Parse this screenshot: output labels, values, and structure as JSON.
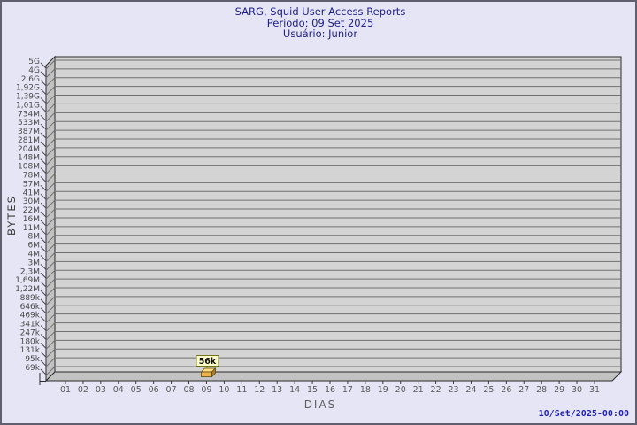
{
  "header": {
    "title": "SARG, Squid User Access Reports",
    "period": "Período: 09 Set 2025",
    "user": "Usuário: Junior"
  },
  "footer": {
    "timestamp": "10/Set/2025-00:00"
  },
  "chart_data": {
    "type": "bar",
    "title": "SARG, Squid User Access Reports",
    "subtitle": "Período: 09 Set 2025",
    "user_line": "Usuário: Junior",
    "xlabel": "DIAS",
    "ylabel": "BYTES",
    "grid": true,
    "legend": "none",
    "style": "3d-bar (gd / SARG daily report)",
    "y_ticks_top_to_bottom": [
      "5G",
      "4G",
      "2,6G",
      "1,92G",
      "1,39G",
      "1,01G",
      "734M",
      "533M",
      "387M",
      "281M",
      "204M",
      "148M",
      "108M",
      "78M",
      "57M",
      "41M",
      "30M",
      "22M",
      "16M",
      "11M",
      "8M",
      "6M",
      "4M",
      "3M",
      "2,3M",
      "1,69M",
      "1,22M",
      "889k",
      "646k",
      "469k",
      "341k",
      "247k",
      "180k",
      "131k",
      "95k",
      "69k"
    ],
    "x_ticks": [
      "01",
      "02",
      "03",
      "04",
      "05",
      "06",
      "07",
      "08",
      "09",
      "10",
      "11",
      "12",
      "13",
      "14",
      "15",
      "16",
      "17",
      "18",
      "19",
      "20",
      "21",
      "22",
      "23",
      "24",
      "25",
      "26",
      "27",
      "28",
      "29",
      "30",
      "31"
    ],
    "categories": [
      "01",
      "02",
      "03",
      "04",
      "05",
      "06",
      "07",
      "08",
      "09",
      "10",
      "11",
      "12",
      "13",
      "14",
      "15",
      "16",
      "17",
      "18",
      "19",
      "20",
      "21",
      "22",
      "23",
      "24",
      "25",
      "26",
      "27",
      "28",
      "29",
      "30",
      "31"
    ],
    "values": [
      null,
      null,
      null,
      null,
      null,
      null,
      null,
      null,
      56000,
      null,
      null,
      null,
      null,
      null,
      null,
      null,
      null,
      null,
      null,
      null,
      null,
      null,
      null,
      null,
      null,
      null,
      null,
      null,
      null,
      null,
      null
    ],
    "points": [
      {
        "day": "09",
        "value_label": "56k",
        "value_bytes_approx": 56000
      }
    ]
  },
  "colors": {
    "background": "#e5e5f5",
    "frame_border": "#5f5f6e",
    "plot_back_wall": "#d4d4d4",
    "plot_side_wall": "#c2c2c2",
    "gridline": "#707070",
    "plot_outline": "#2a2a2a",
    "title_text": "#21218c",
    "axis_tick_text": "#4a4a4a",
    "x_tick_text": "#5a5a5a",
    "timestamp_text": "#2121b0",
    "bar_front": "#edb14d",
    "bar_top": "#ffdd85",
    "bar_side": "#b07c28",
    "bar_outline": "#5a4a10",
    "point_label_bg": "#ffffc9",
    "point_label_border": "#73731f",
    "point_label_text": "#111111"
  }
}
